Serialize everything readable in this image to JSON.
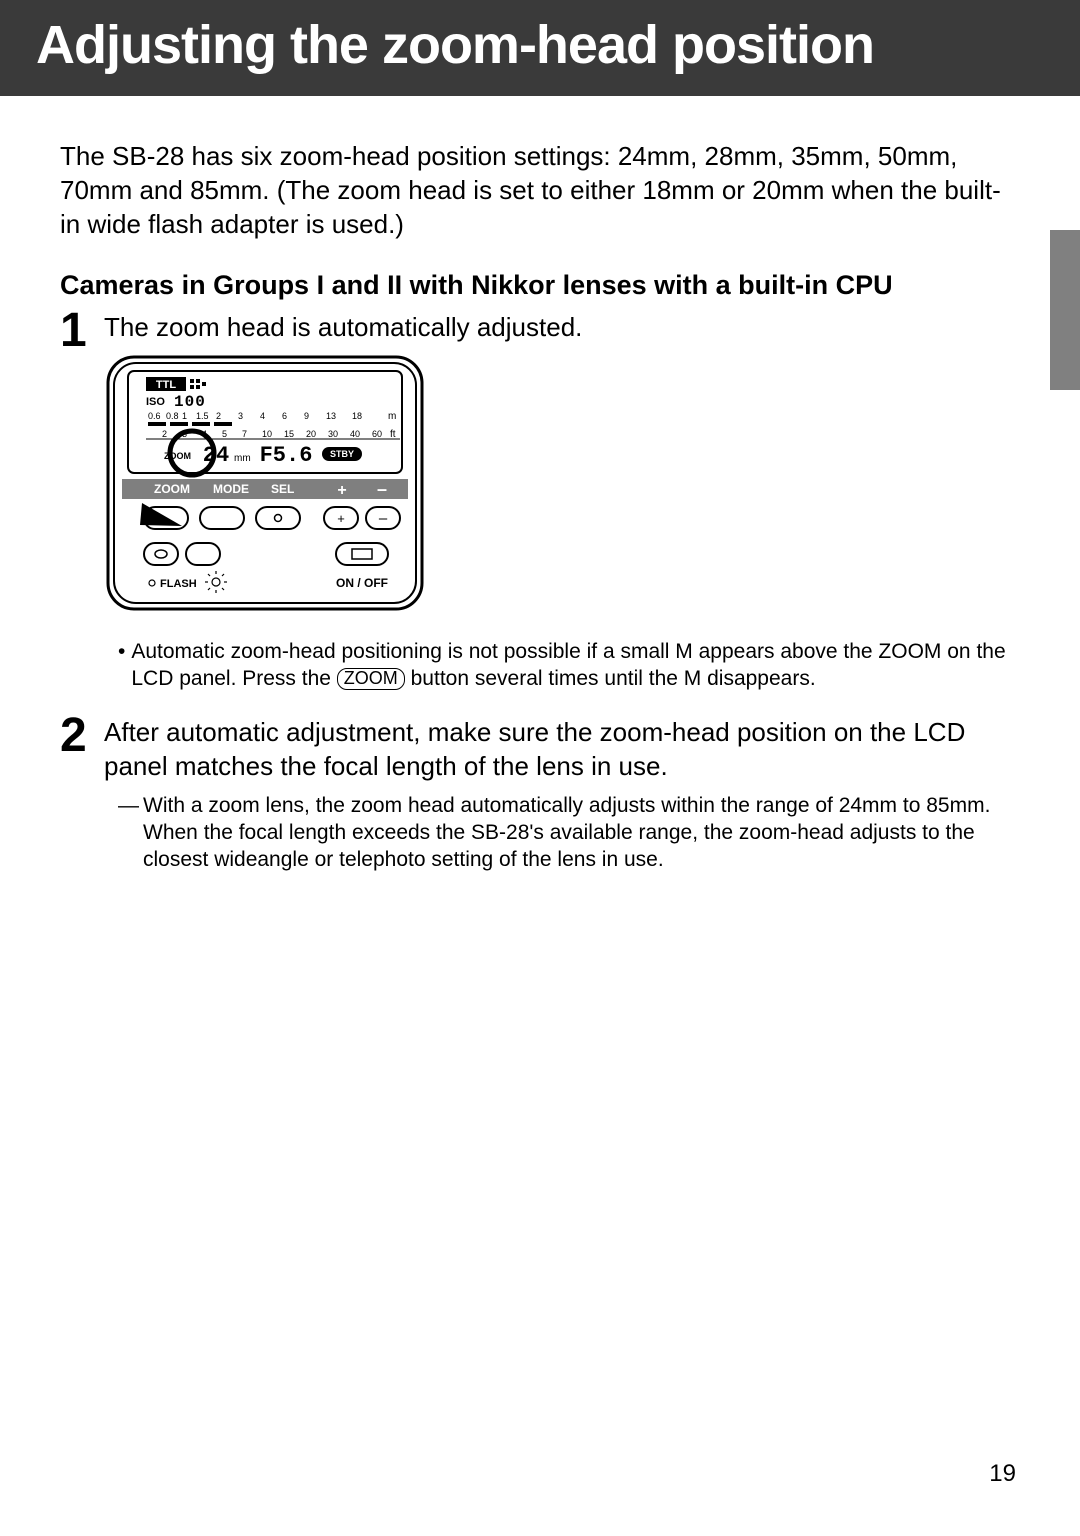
{
  "header": {
    "title": "Adjusting the zoom-head position"
  },
  "intro": "The SB-28 has six zoom-head position settings: 24mm, 28mm, 35mm, 50mm, 70mm and 85mm. (The zoom head is set to either 18mm or 20mm when the built-in wide flash adapter is used.)",
  "subhead": "Cameras in Groups I and II with Nikkor lenses with a built-in CPU",
  "steps": {
    "1": {
      "num": "1",
      "text": "The zoom head is automatically adjusted."
    },
    "2": {
      "num": "2",
      "text": "After automatic adjustment, make sure the zoom-head position on the LCD panel matches the focal length of the lens in use."
    }
  },
  "bullet": {
    "pre": "Automatic zoom-head positioning is not possible if a small M appears above the ZOOM on the LCD panel. Press the ",
    "btn": "ZOOM",
    "post": " button several times until the M disappears."
  },
  "dash_note": "With a zoom lens, the zoom head automatically adjusts within the range of 24mm to 85mm. When the focal length exceeds the SB-28's available range, the zoom-head adjusts to the closest wideangle or telephoto setting of the lens in use.",
  "page_number": "19",
  "lcd": {
    "iso_label": "ISO",
    "iso_value": "100",
    "ttl_label": "TTL",
    "m_scale": [
      "0.6",
      "0.8",
      "1",
      "1.5",
      "2",
      "3",
      "4",
      "6",
      "9",
      "13",
      "18"
    ],
    "m_unit": "m",
    "ft_scale": [
      "2",
      "3",
      "4",
      "5",
      "7",
      "10",
      "15",
      "20",
      "30",
      "40",
      "60"
    ],
    "ft_unit": "ft",
    "zoom_label": "ZOOM",
    "zoom_value": "24",
    "zoom_mm": "mm",
    "f_value": "F5.6",
    "stby": "STBY",
    "row_labels": {
      "zoom": "ZOOM",
      "mode": "MODE",
      "sel": "SEL",
      "plus": "+",
      "minus": "–"
    },
    "flash_label": "FLASH",
    "onoff_label": "ON / OFF",
    "colors": {
      "outline": "#000000",
      "lcd_bg": "#ffffff",
      "button_row_bg": "#7f7f7f",
      "text": "#000000",
      "inverse_text": "#ffffff"
    }
  }
}
